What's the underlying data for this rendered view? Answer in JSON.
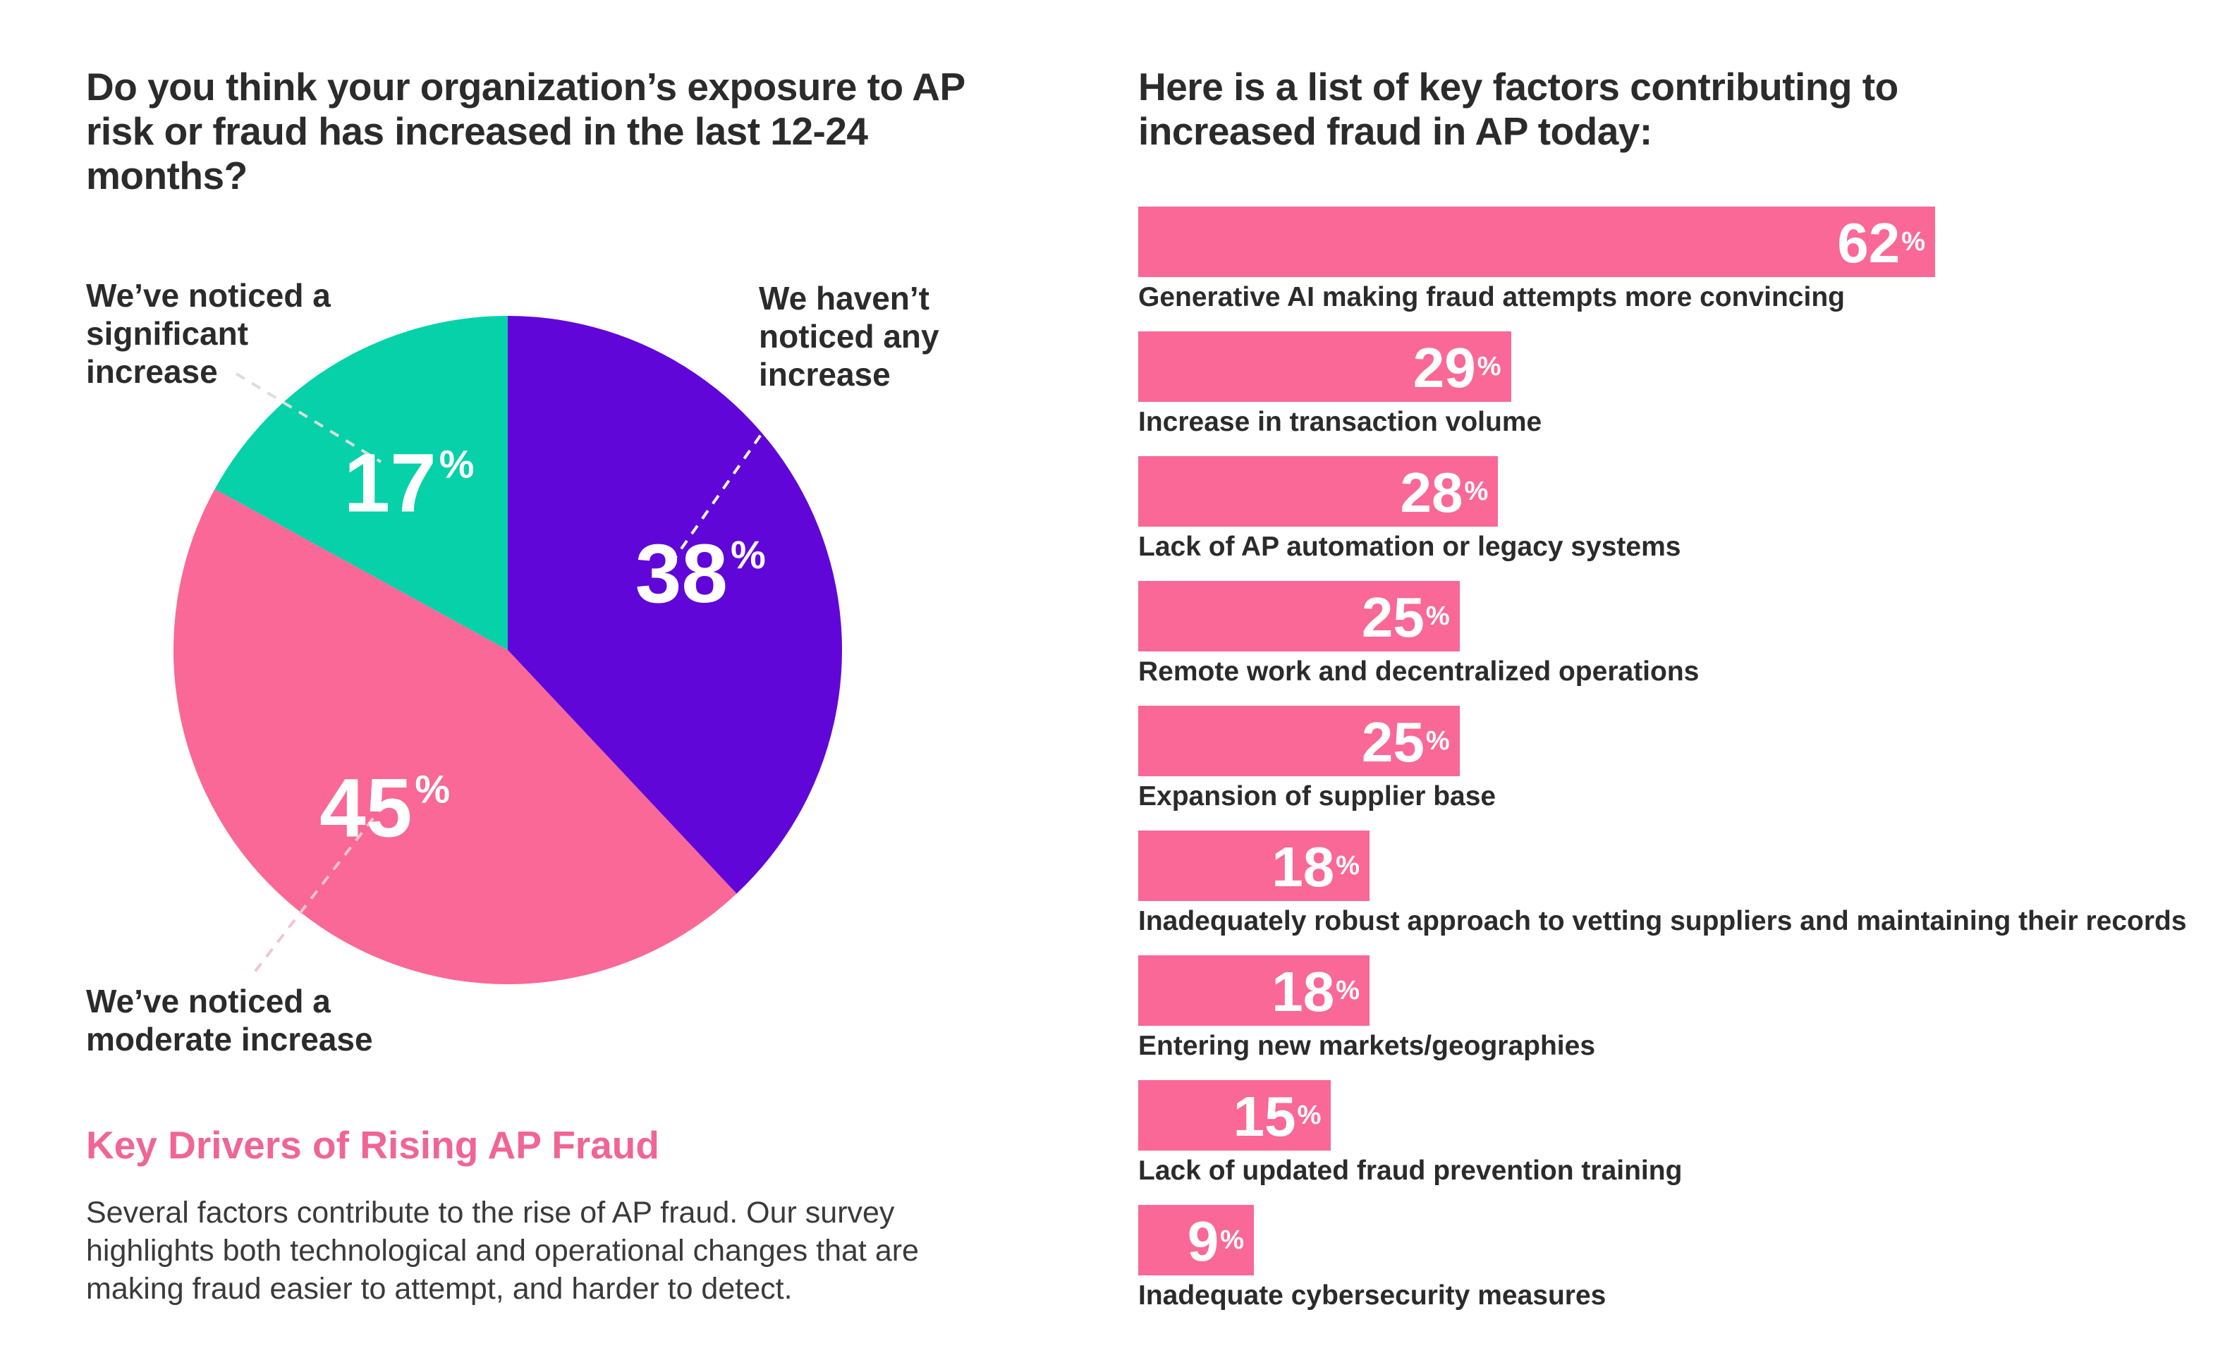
{
  "left_panel": {
    "title": "Do you think your organization’s exposure to AP risk or fraud has increased in the last 12-24 months?",
    "section_heading": "Key Drivers of Rising AP Fraud",
    "section_body": "Several factors contribute to the rise of AP fraud. Our survey highlights both technological and operational changes that are making fraud easier to attempt, and harder to detect."
  },
  "right_panel": {
    "title": "Here is a list of key factors contributing to increased fraud in AP today:"
  },
  "colors": {
    "purple": "#6106d9",
    "pink": "#f96897",
    "teal": "#06d1a9",
    "heading_pink": "#f06595",
    "text": "#2b2b2b"
  },
  "chart_data": [
    {
      "type": "pie",
      "title": "Do you think your organization’s exposure to AP risk or fraud has increased in the last 12-24 months?",
      "unit": "%",
      "slices": [
        {
          "label": "We haven’t noticed any increase",
          "value": 38,
          "color": "#6106d9"
        },
        {
          "label": "We’ve noticed a moderate increase",
          "value": 45,
          "color": "#f96897"
        },
        {
          "label": "We’ve noticed a significant increase",
          "value": 17,
          "color": "#06d1a9"
        }
      ]
    },
    {
      "type": "bar",
      "orientation": "horizontal",
      "title": "Here is a list of key factors contributing to increased fraud in AP today:",
      "unit": "%",
      "categories": [
        "Generative AI making fraud attempts more convincing",
        "Increase in transaction volume",
        "Lack of AP automation or legacy systems",
        "Remote work and decentralized operations",
        "Expansion of supplier base",
        "Inadequately robust approach to vetting suppliers and maintaining their records",
        "Entering new markets/geographies",
        "Lack of updated fraud prevention training",
        "Inadequate cybersecurity measures"
      ],
      "values": [
        62,
        29,
        28,
        25,
        25,
        18,
        18,
        15,
        9
      ],
      "color": "#f96897"
    }
  ]
}
